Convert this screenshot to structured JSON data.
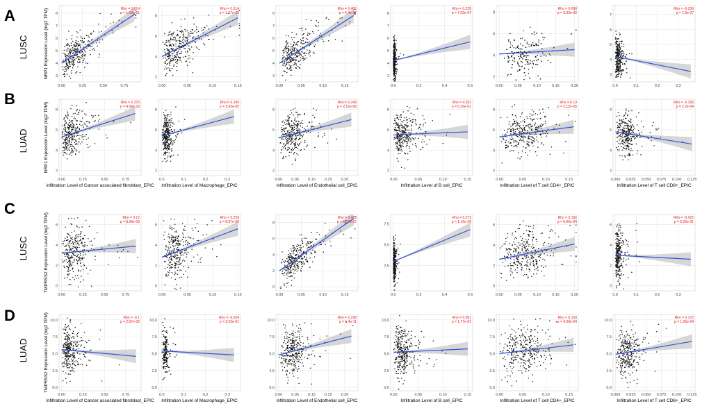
{
  "figure": {
    "rows": [
      {
        "letter": "A",
        "cancer": "LUSC",
        "ylabel": "NRP1 Expression Level (log2 TPM)",
        "show_xlabels": false
      },
      {
        "letter": "B",
        "cancer": "LUAD",
        "ylabel": "NRP1 Expression Level (log2 TPM)",
        "show_xlabels": true
      },
      {
        "letter": "C",
        "cancer": "LUSC",
        "ylabel": "TMPRSS2 Expression Level (log2 TPM)",
        "show_xlabels": false
      },
      {
        "letter": "D",
        "cancer": "LUAD",
        "ylabel": "TMPRSS2 Expression Level (log2 TPM)",
        "show_xlabels": true
      }
    ],
    "columns": [
      "Infiltration Level of Cancer associated fibroblast_EPIC",
      "Infiltration Level of Macrophage_EPIC",
      "Infiltration Level of Endothelial cell_EPIC",
      "Infiltration Level of B cell_EPIC",
      "Infiltration Level of T cell CD4+_EPIC",
      "Infiltration Level of T cell CD8+_EPIC"
    ]
  },
  "chart_data": [
    {
      "type": "scatter",
      "row": 0,
      "col": 0,
      "rho": "Rho = 0.614",
      "p": "p = 1.09e-51",
      "x_ticks": [
        0.0,
        0.25,
        0.5,
        0.75
      ],
      "xlim": [
        -0.03,
        0.95
      ],
      "y_ticks": [
        3,
        4,
        5,
        6,
        7,
        8
      ],
      "ylim": [
        2.5,
        8.6
      ],
      "fit": [
        4.0,
        0.0,
        7.9,
        0.87
      ],
      "n": 320,
      "x_cluster": 0.08,
      "x_spread": 0.3,
      "resid": 0.7
    },
    {
      "type": "scatter",
      "row": 0,
      "col": 1,
      "rho": "Rho = 0.514",
      "p": "p = 1.37e-33",
      "x_ticks": [
        0.0,
        0.05,
        0.1,
        0.15
      ],
      "xlim": [
        -0.007,
        0.155
      ],
      "y_ticks": [
        2,
        4,
        6,
        8
      ],
      "ylim": [
        1.5,
        9
      ],
      "fit": [
        4.0,
        0.0,
        7.8,
        0.15
      ],
      "n": 320,
      "x_cluster": 0.015,
      "x_spread": 0.06,
      "resid": 1.0
    },
    {
      "type": "scatter",
      "row": 0,
      "col": 2,
      "rho": "Rho = 0.465",
      "p": "p = 4.4e-27",
      "x_ticks": [
        0.0,
        0.05,
        0.1,
        0.15
      ],
      "xlim": [
        -0.008,
        0.18
      ],
      "y_ticks": [
        3,
        4,
        5,
        6,
        7,
        8
      ],
      "ylim": [
        2.5,
        8.6
      ],
      "fit": [
        4.0,
        0.0,
        7.8,
        0.17
      ],
      "n": 320,
      "x_cluster": 0.02,
      "x_spread": 0.06,
      "resid": 0.7
    },
    {
      "type": "scatter",
      "row": 0,
      "col": 3,
      "rho": "Rho = 0.225",
      "p": "p = 7.02e-07",
      "x_ticks": [
        0.0,
        0.2,
        0.4,
        0.6
      ],
      "xlim": [
        -0.02,
        0.62
      ],
      "y_ticks": [
        3,
        4,
        5,
        6,
        7,
        8
      ],
      "ylim": [
        2.5,
        8.6
      ],
      "fit": [
        4.2,
        0.0,
        5.7,
        0.6
      ],
      "n": 320,
      "x_cluster": 0.005,
      "x_spread": 0.015,
      "resid": 0.8
    },
    {
      "type": "scatter",
      "row": 0,
      "col": 4,
      "rho": "Rho = 0.098",
      "p": "p = 3.93e-02",
      "x_ticks": [
        0.0,
        0.05,
        0.1,
        0.15,
        0.2
      ],
      "xlim": [
        -0.008,
        0.21
      ],
      "y_ticks": [
        2,
        4,
        6,
        8
      ],
      "ylim": [
        1.5,
        8.6
      ],
      "fit": [
        4.1,
        0.0,
        4.5,
        0.2
      ],
      "n": 320,
      "x_cluster": 0.09,
      "x_spread": 0.05,
      "resid": 1.1
    },
    {
      "type": "scatter",
      "row": 0,
      "col": 5,
      "rho": "Rho = -0.236",
      "p": "p = 1.9e-07",
      "x_ticks": [
        0.0,
        0.1,
        0.2,
        0.3
      ],
      "xlim": [
        -0.01,
        0.38
      ],
      "y_ticks": [
        3,
        4,
        5,
        6,
        7
      ],
      "ylim": [
        2.5,
        7.6
      ],
      "fit": [
        4.2,
        0.0,
        3.2,
        0.36
      ],
      "n": 300,
      "x_cluster": 0.008,
      "x_spread": 0.025,
      "resid": 0.7
    },
    {
      "type": "scatter",
      "row": 1,
      "col": 0,
      "rho": "Rho = 0.376",
      "p": "p = 4.99e-18",
      "x_ticks": [
        0.0,
        0.25,
        0.5,
        0.75
      ],
      "xlim": [
        -0.03,
        0.93
      ],
      "y_ticks": [
        2,
        4,
        6,
        8
      ],
      "ylim": [
        1.5,
        9
      ],
      "fit": [
        5.3,
        0.0,
        7.6,
        0.86
      ],
      "n": 320,
      "x_cluster": 0.05,
      "x_spread": 0.2,
      "resid": 1.0
    },
    {
      "type": "scatter",
      "row": 1,
      "col": 1,
      "rho": "Rho = 0.189",
      "p": "p = 2.43e-05",
      "x_ticks": [
        0.0,
        0.1,
        0.2,
        0.3
      ],
      "xlim": [
        -0.015,
        0.36
      ],
      "y_ticks": [
        2,
        4,
        6,
        8
      ],
      "ylim": [
        1.5,
        9
      ],
      "fit": [
        5.4,
        0.0,
        7.3,
        0.33
      ],
      "n": 320,
      "x_cluster": 0.02,
      "x_spread": 0.03,
      "resid": 1.0
    },
    {
      "type": "scatter",
      "row": 1,
      "col": 2,
      "rho": "Rho = 0.249",
      "p": "p = 2.16e-08",
      "x_ticks": [
        0.0,
        0.05,
        0.1,
        0.15,
        0.2
      ],
      "xlim": [
        -0.008,
        0.24
      ],
      "y_ticks": [
        2,
        4,
        6,
        8
      ],
      "ylim": [
        1.5,
        9
      ],
      "fit": [
        5.2,
        0.0,
        7.0,
        0.22
      ],
      "n": 320,
      "x_cluster": 0.04,
      "x_spread": 0.05,
      "resid": 1.0
    },
    {
      "type": "scatter",
      "row": 1,
      "col": 3,
      "rho": "Rho = 0.022",
      "p": "p = 6.26e-01",
      "x_ticks": [
        0.0,
        0.05,
        0.1,
        0.15
      ],
      "xlim": [
        -0.006,
        0.16
      ],
      "y_ticks": [
        2,
        4,
        6,
        8
      ],
      "ylim": [
        1.5,
        9
      ],
      "fit": [
        5.5,
        0.0,
        5.8,
        0.15
      ],
      "n": 320,
      "x_cluster": 0.01,
      "x_spread": 0.03,
      "resid": 1.0
    },
    {
      "type": "scatter",
      "row": 1,
      "col": 4,
      "rho": "Rho = 0.19",
      "p": "p = 2.12e-05",
      "x_ticks": [
        0.0,
        0.05,
        0.1,
        0.15
      ],
      "xlim": [
        -0.007,
        0.17
      ],
      "y_ticks": [
        2,
        4,
        6,
        8
      ],
      "ylim": [
        1.5,
        9
      ],
      "fit": [
        5.3,
        0.0,
        6.3,
        0.16
      ],
      "n": 320,
      "x_cluster": 0.07,
      "x_spread": 0.04,
      "resid": 1.0
    },
    {
      "type": "scatter",
      "row": 1,
      "col": 5,
      "rho": "Rho = -0.165",
      "p": "p = 2.2e-04",
      "x_ticks": [
        0.0,
        0.025,
        0.05,
        0.075,
        0.1,
        0.125
      ],
      "xlim": [
        -0.004,
        0.13
      ],
      "y_ticks": [
        2,
        4,
        6,
        8
      ],
      "ylim": [
        1.5,
        9
      ],
      "fit": [
        5.8,
        0.0,
        4.6,
        0.125
      ],
      "n": 300,
      "x_cluster": 0.02,
      "x_spread": 0.02,
      "resid": 1.0
    },
    {
      "type": "scatter",
      "row": 2,
      "col": 0,
      "rho": "Rho = 0.12",
      "p": "p = 8.99e-03",
      "x_ticks": [
        0.0,
        0.25,
        0.5,
        0.75
      ],
      "xlim": [
        -0.03,
        0.93
      ],
      "y_ticks": [
        0,
        2,
        4,
        6
      ],
      "ylim": [
        -0.5,
        7
      ],
      "fit": [
        3.2,
        0.0,
        3.9,
        0.87
      ],
      "n": 300,
      "x_cluster": 0.08,
      "x_spread": 0.25,
      "resid": 1.4
    },
    {
      "type": "scatter",
      "row": 2,
      "col": 1,
      "rho": "Rho = 0.259",
      "p": "p = 8.87e-09",
      "x_ticks": [
        0.0,
        0.05,
        0.1,
        0.15
      ],
      "xlim": [
        -0.007,
        0.155
      ],
      "y_ticks": [
        0,
        2,
        4,
        6
      ],
      "ylim": [
        -0.5,
        7
      ],
      "fit": [
        2.8,
        0.0,
        5.6,
        0.15
      ],
      "n": 300,
      "x_cluster": 0.02,
      "x_spread": 0.04,
      "resid": 1.4
    },
    {
      "type": "scatter",
      "row": 2,
      "col": 2,
      "rho": "Rho = 0.463",
      "p": "p = 6.27e-27",
      "x_ticks": [
        0.0,
        0.05,
        0.1,
        0.15
      ],
      "xlim": [
        -0.008,
        0.18
      ],
      "y_ticks": [
        0,
        2,
        4,
        6,
        8
      ],
      "ylim": [
        -0.5,
        9
      ],
      "fit": [
        2.0,
        0.0,
        8.5,
        0.17
      ],
      "n": 320,
      "x_cluster": 0.025,
      "x_spread": 0.05,
      "resid": 1.0
    },
    {
      "type": "scatter",
      "row": 2,
      "col": 3,
      "rho": "Rho = 0.272",
      "p": "p = 1.16e-09",
      "x_ticks": [
        0.0,
        0.2,
        0.4,
        0.6
      ],
      "xlim": [
        -0.02,
        0.62
      ],
      "y_ticks": [
        2.5,
        5.0,
        7.5
      ],
      "ylim": [
        -0.5,
        8.6
      ],
      "fit": [
        3.0,
        0.0,
        6.8,
        0.6
      ],
      "n": 300,
      "x_cluster": 0.005,
      "x_spread": 0.015,
      "resid": 1.2
    },
    {
      "type": "scatter",
      "row": 2,
      "col": 4,
      "rho": "Rho = 0.156",
      "p": "p = 6.06e-04",
      "x_ticks": [
        0.0,
        0.05,
        0.1,
        0.15,
        0.2
      ],
      "xlim": [
        -0.008,
        0.21
      ],
      "y_ticks": [
        0,
        2,
        4,
        6
      ],
      "ylim": [
        -0.5,
        7
      ],
      "fit": [
        2.6,
        0.0,
        4.1,
        0.2
      ],
      "n": 320,
      "x_cluster": 0.09,
      "x_spread": 0.05,
      "resid": 1.3
    },
    {
      "type": "scatter",
      "row": 2,
      "col": 5,
      "rho": "Rho = -0.022",
      "p": "p = 6.26e-01",
      "x_ticks": [
        0.0,
        0.1,
        0.2,
        0.3
      ],
      "xlim": [
        -0.01,
        0.38
      ],
      "y_ticks": [
        0,
        2,
        4,
        6
      ],
      "ylim": [
        -0.5,
        7
      ],
      "fit": [
        3.0,
        0.0,
        2.6,
        0.36
      ],
      "n": 300,
      "x_cluster": 0.008,
      "x_spread": 0.025,
      "resid": 1.3
    },
    {
      "type": "scatter",
      "row": 3,
      "col": 0,
      "rho": "Rho = -0.1",
      "p": "p = 2.67e-02",
      "x_ticks": [
        0.0,
        0.25,
        0.5,
        0.75
      ],
      "xlim": [
        -0.03,
        0.93
      ],
      "y_ticks": [
        0.0,
        2.5,
        5.0,
        7.5,
        10.0
      ],
      "ylim": [
        -0.5,
        10.8
      ],
      "fit": [
        5.6,
        0.0,
        4.6,
        0.87
      ],
      "n": 320,
      "x_cluster": 0.05,
      "x_spread": 0.15,
      "resid": 1.8
    },
    {
      "type": "scatter",
      "row": 3,
      "col": 1,
      "rho": "Rho = -0.054",
      "p": "p = 2.33e-01",
      "x_ticks": [
        0.0,
        0.1,
        0.2,
        0.3
      ],
      "xlim": [
        -0.015,
        0.36
      ],
      "y_ticks": [
        0.0,
        2.5,
        5.0,
        7.5,
        10.0
      ],
      "ylim": [
        -0.5,
        10.8
      ],
      "fit": [
        5.4,
        0.0,
        4.8,
        0.33
      ],
      "n": 300,
      "x_cluster": 0.015,
      "x_spread": 0.02,
      "resid": 1.8
    },
    {
      "type": "scatter",
      "row": 3,
      "col": 2,
      "rho": "Rho = 0.298",
      "p": "p = 1.4e-11",
      "x_ticks": [
        0.0,
        0.05,
        0.1,
        0.15,
        0.2
      ],
      "xlim": [
        -0.008,
        0.24
      ],
      "y_ticks": [
        0.0,
        2.5,
        5.0,
        7.5,
        10.0
      ],
      "ylim": [
        -0.5,
        10.8
      ],
      "fit": [
        4.8,
        0.0,
        7.6,
        0.22
      ],
      "n": 320,
      "x_cluster": 0.04,
      "x_spread": 0.05,
      "resid": 1.8
    },
    {
      "type": "scatter",
      "row": 3,
      "col": 3,
      "rho": "Rho = 0.061",
      "p": "p = 1.77e-01",
      "x_ticks": [
        0.0,
        0.05,
        0.1,
        0.15
      ],
      "xlim": [
        -0.006,
        0.16
      ],
      "y_ticks": [
        0.0,
        2.5,
        5.0,
        7.5,
        10.0
      ],
      "ylim": [
        -0.5,
        10.8
      ],
      "fit": [
        5.2,
        0.0,
        5.7,
        0.15
      ],
      "n": 320,
      "x_cluster": 0.01,
      "x_spread": 0.03,
      "resid": 1.8
    },
    {
      "type": "scatter",
      "row": 3,
      "col": 4,
      "rho": "Rho = 0.158",
      "p": "p = 4.09e-04",
      "x_ticks": [
        0.0,
        0.05,
        0.1,
        0.15
      ],
      "xlim": [
        -0.007,
        0.17
      ],
      "y_ticks": [
        0.0,
        2.5,
        5.0,
        7.5,
        10.0
      ],
      "ylim": [
        -0.5,
        10.8
      ],
      "fit": [
        5.0,
        0.0,
        6.3,
        0.16
      ],
      "n": 320,
      "x_cluster": 0.07,
      "x_spread": 0.04,
      "resid": 1.8
    },
    {
      "type": "scatter",
      "row": 3,
      "col": 5,
      "rho": "Rho = 0.172",
      "p": "p = 1.26e-04",
      "x_ticks": [
        0.0,
        0.025,
        0.05,
        0.075,
        0.1,
        0.125
      ],
      "xlim": [
        -0.004,
        0.13
      ],
      "y_ticks": [
        0.0,
        2.5,
        5.0,
        7.5,
        10.0
      ],
      "ylim": [
        -0.5,
        10.8
      ],
      "fit": [
        4.9,
        0.0,
        6.8,
        0.125
      ],
      "n": 300,
      "x_cluster": 0.02,
      "x_spread": 0.02,
      "resid": 1.8
    }
  ]
}
